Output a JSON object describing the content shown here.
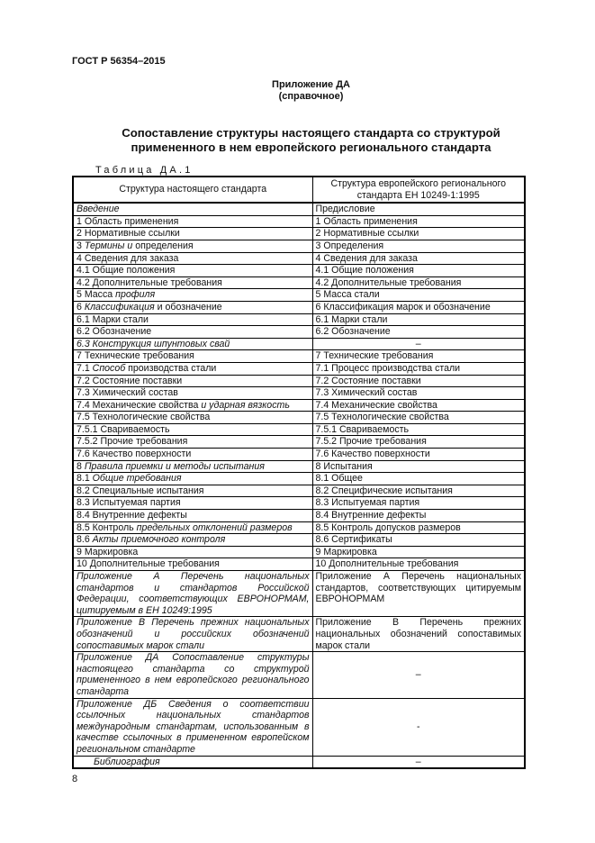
{
  "header": {
    "doc_id": "ГОСТ Р 56354–2015"
  },
  "annex": {
    "title": "Приложение ДА",
    "subtitle": "(справочное)"
  },
  "title": {
    "line1": "Сопоставление структуры настоящего стандарта со структурой",
    "line2": "примененного в нем европейского регионального стандарта"
  },
  "table": {
    "caption": "Таблица ДА.1",
    "headers": [
      "Структура настоящего стандарта",
      "Структура европейского регионального стандарта ЕН 10249-1:1995"
    ],
    "rows": [
      [
        [
          [
            "Введение",
            1
          ]
        ],
        [
          [
            "Предисловие",
            0
          ]
        ]
      ],
      [
        [
          [
            "1 Область применения",
            0
          ]
        ],
        [
          [
            "1 Область применения",
            0
          ]
        ]
      ],
      [
        [
          [
            "2 Нормативные ссылки",
            0
          ]
        ],
        [
          [
            "2 Нормативные ссылки",
            0
          ]
        ]
      ],
      [
        [
          [
            "3 ",
            0
          ],
          [
            "Термины и",
            1
          ],
          [
            " определения",
            0
          ]
        ],
        [
          [
            "3 Определения",
            0
          ]
        ]
      ],
      [
        [
          [
            "4 Сведения для заказа",
            0
          ]
        ],
        [
          [
            "4 Сведения для заказа",
            0
          ]
        ]
      ],
      [
        [
          [
            "4.1 Общие положения",
            0
          ]
        ],
        [
          [
            "4.1 Общие положения",
            0
          ]
        ]
      ],
      [
        [
          [
            "4.2 Дополнительные требования",
            0
          ]
        ],
        [
          [
            "4.2 Дополнительные требования",
            0
          ]
        ]
      ],
      [
        [
          [
            "5 Масса ",
            0
          ],
          [
            "профиля",
            1
          ]
        ],
        [
          [
            "5 Масса стали",
            0
          ]
        ]
      ],
      [
        [
          [
            "6 ",
            0
          ],
          [
            "Классификация",
            1
          ],
          [
            " и обозначение",
            0
          ]
        ],
        [
          [
            "6 Классификация марок и обозначение",
            0
          ]
        ]
      ],
      [
        [
          [
            "6.1 Марки стали",
            0
          ]
        ],
        [
          [
            "6.1 Марки стали",
            0
          ]
        ]
      ],
      [
        [
          [
            "6.2 Обозначение",
            0
          ]
        ],
        [
          [
            "6.2 Обозначение",
            0
          ]
        ]
      ],
      [
        [
          [
            "6.3 Конструкция шпунтовых свай",
            1
          ]
        ],
        [
          [
            "–",
            0
          ]
        ]
      ],
      [
        [
          [
            "7 Технические требования",
            0
          ]
        ],
        [
          [
            "7 Технические требования",
            0
          ]
        ]
      ],
      [
        [
          [
            "7.1 ",
            0
          ],
          [
            "Способ",
            1
          ],
          [
            " производства стали",
            0
          ]
        ],
        [
          [
            "7.1 Процесс производства стали",
            0
          ]
        ]
      ],
      [
        [
          [
            "7.2 Состояние поставки",
            0
          ]
        ],
        [
          [
            "7.2 Состояние поставки",
            0
          ]
        ]
      ],
      [
        [
          [
            "7.3 Химический состав",
            0
          ]
        ],
        [
          [
            "7.3 Химический состав",
            0
          ]
        ]
      ],
      [
        [
          [
            "7.4 Механические свойства ",
            0
          ],
          [
            "и ударная вязкость",
            1
          ]
        ],
        [
          [
            "7.4 Механические свойства",
            0
          ]
        ]
      ],
      [
        [
          [
            "7.5 Технологические свойства",
            0
          ]
        ],
        [
          [
            "7.5 Технологические свойства",
            0
          ]
        ]
      ],
      [
        [
          [
            "7.5.1 Свариваемость",
            0
          ]
        ],
        [
          [
            "7.5.1 Свариваемость",
            0
          ]
        ]
      ],
      [
        [
          [
            "7.5.2 Прочие требования",
            0
          ]
        ],
        [
          [
            "7.5.2 Прочие требования",
            0
          ]
        ]
      ],
      [
        [
          [
            "7.6 Качество поверхности",
            0
          ]
        ],
        [
          [
            "7.6 Качество поверхности",
            0
          ]
        ]
      ],
      [
        [
          [
            "8 ",
            0
          ],
          [
            "Правила приемки и методы испытания",
            1
          ]
        ],
        [
          [
            "8 Испытания",
            0
          ]
        ]
      ],
      [
        [
          [
            "8.1 ",
            0
          ],
          [
            "Общие требования",
            1
          ]
        ],
        [
          [
            "8.1 Общее",
            0
          ]
        ]
      ],
      [
        [
          [
            "8.2 Специальные испытания",
            0
          ]
        ],
        [
          [
            "8.2 Специфические испытания",
            0
          ]
        ]
      ],
      [
        [
          [
            "8.3 Испытуемая партия",
            0
          ]
        ],
        [
          [
            "8.3 Испытуемая партия",
            0
          ]
        ]
      ],
      [
        [
          [
            "8.4 Внутренние дефекты",
            0
          ]
        ],
        [
          [
            "8.4 Внутренние дефекты",
            0
          ]
        ]
      ],
      [
        [
          [
            "8.5 Контроль ",
            0
          ],
          [
            "предельных отклонений размеров",
            1
          ]
        ],
        [
          [
            "8.5 Контроль допусков размеров",
            0
          ]
        ]
      ],
      [
        [
          [
            "8.6 ",
            0
          ],
          [
            "Акты приемочного контроля",
            1
          ]
        ],
        [
          [
            "8.6 Сертификаты",
            0
          ]
        ]
      ],
      [
        [
          [
            "9 Маркировка",
            0
          ]
        ],
        [
          [
            "9 Маркировка",
            0
          ]
        ]
      ],
      [
        [
          [
            "10 Дополнительные требования",
            0
          ]
        ],
        [
          [
            "10 Дополнительные требования",
            0
          ]
        ]
      ],
      [
        [
          [
            "Приложение А Перечень национальных стандартов и стандартов Российской Федерации, соответствующих ЕВРОНОРМАМ, цитируемым в ЕН 10249:1995",
            1
          ]
        ],
        [
          [
            "Приложение А Перечень национальных стандартов, соответствующих цитируемым ЕВРОНОРМАМ",
            0
          ]
        ]
      ],
      [
        [
          [
            "Приложение В Перечень прежних национальных обозначений и российских обозначений сопоставимых марок стали",
            1
          ]
        ],
        [
          [
            "Приложение В Перечень прежних национальных обозначений сопоставимых марок стали",
            0
          ]
        ]
      ],
      [
        [
          [
            "Приложение ДА Сопоставление структуры настоящего стандарта со структурой примененного в нем европейского регионального стандарта",
            1
          ]
        ],
        [
          [
            "–",
            0
          ]
        ]
      ],
      [
        [
          [
            "Приложение ДБ Сведения о соответствии ссылочных национальных стандартов международным стандартам, использованным в качестве ссылочных в примененном европейском региональном стандарте",
            1
          ]
        ],
        [
          [
            "-",
            0
          ]
        ]
      ],
      [
        [
          [
            "Библиография",
            1
          ]
        ],
        [
          [
            "–",
            0
          ]
        ]
      ]
    ]
  },
  "footer": {
    "page_number": "8"
  }
}
